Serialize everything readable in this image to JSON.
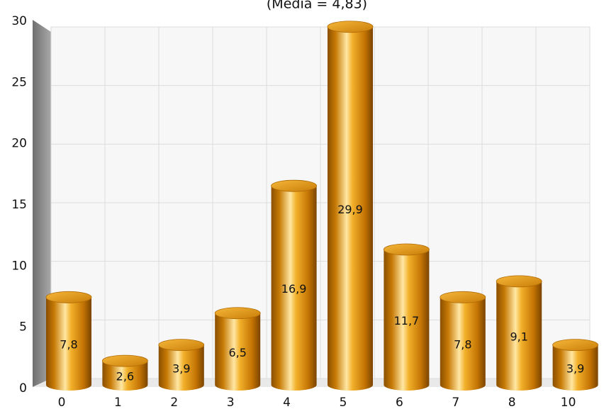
{
  "chart_data": {
    "type": "bar",
    "subtitle": "(Media = 4,83)",
    "categories": [
      "0",
      "1",
      "2",
      "3",
      "4",
      "5",
      "6",
      "7",
      "8",
      "10"
    ],
    "values": [
      7.8,
      2.6,
      3.9,
      6.5,
      16.9,
      29.9,
      11.7,
      7.8,
      9.1,
      3.9
    ],
    "value_labels": [
      "7,8",
      "2,6",
      "3,9",
      "6,5",
      "16,9",
      "29,9",
      "11,7",
      "7,8",
      "9,1",
      "3,9"
    ],
    "y_ticks": [
      "0",
      "5",
      "10",
      "15",
      "20",
      "25",
      "30"
    ],
    "ylim": [
      0,
      30
    ],
    "grid": true,
    "bar_style": "3d-cylinder",
    "bar_color": "#D98A0B"
  }
}
